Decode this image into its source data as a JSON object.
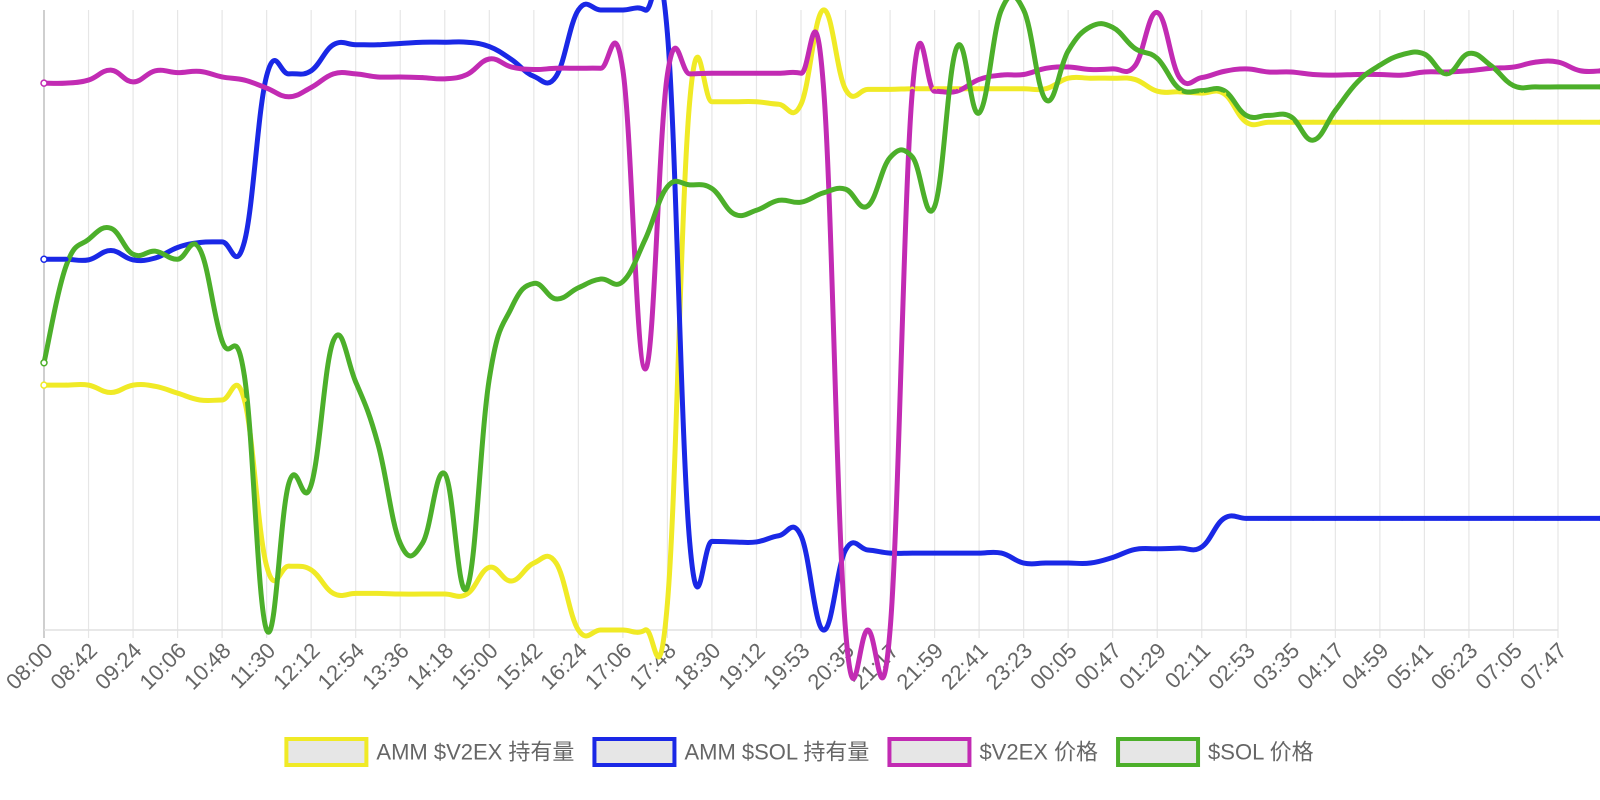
{
  "chart_data": {
    "type": "line",
    "title": "",
    "xlabel": "",
    "ylabel": "",
    "grid": {
      "vertical": true,
      "horizontal": false
    },
    "legend_position": "bottom",
    "y_axis_labels_visible": false,
    "y_normalized": true,
    "categories": [
      "08:00",
      "08:42",
      "09:24",
      "10:06",
      "10:48",
      "11:30",
      "12:12",
      "12:54",
      "13:36",
      "14:18",
      "15:00",
      "15:42",
      "16:24",
      "17:06",
      "17:48",
      "18:30",
      "19:12",
      "19:53",
      "20:35",
      "21:17",
      "21:59",
      "22:41",
      "23:23",
      "00:05",
      "00:47",
      "01:29",
      "02:11",
      "02:53",
      "03:35",
      "04:17",
      "04:59",
      "05:41",
      "06:23",
      "07:05",
      "07:47"
    ],
    "x": [
      0,
      0.5,
      1,
      1.5,
      2,
      2.5,
      3,
      3.5,
      4,
      4.5,
      5,
      5.5,
      6,
      6.5,
      7,
      7.5,
      8,
      8.5,
      9,
      9.5,
      10,
      10.5,
      11,
      11.5,
      12,
      12.5,
      13,
      13.5,
      14,
      14.5,
      15,
      15.5,
      16,
      16.5,
      17,
      17.5,
      18,
      18.5,
      19,
      19.5,
      20,
      20.5,
      21,
      21.5,
      22,
      22.5,
      23,
      23.5,
      24,
      24.5,
      25,
      25.5,
      26,
      26.5,
      27,
      27.5,
      28,
      28.5,
      29,
      29.5,
      30,
      30.5,
      31,
      31.5,
      32,
      32.5,
      33,
      33.5,
      34,
      34.5,
      35
    ],
    "series": [
      {
        "name": "AMM $V2EX 持有量",
        "color": "#f0ea26",
        "values": [
          0.395,
          0.395,
          0.395,
          0.383,
          0.395,
          0.393,
          0.382,
          0.371,
          0.371,
          0.371,
          0.103,
          0.103,
          0.097,
          0.059,
          0.059,
          0.059,
          0.058,
          0.058,
          0.058,
          0.058,
          0.101,
          0.079,
          0.108,
          0.108,
          0.0,
          0.0,
          0.0,
          0.0,
          0.043,
          0.852,
          0.852,
          0.852,
          0.852,
          0.848,
          0.848,
          1.0,
          0.872,
          0.872,
          0.872,
          0.873,
          0.873,
          0.873,
          0.873,
          0.873,
          0.873,
          0.873,
          0.89,
          0.89,
          0.89,
          0.888,
          0.869,
          0.868,
          0.866,
          0.865,
          0.819,
          0.819,
          0.819,
          0.819,
          0.819,
          0.819,
          0.819,
          0.819,
          0.819,
          0.819,
          0.819,
          0.819,
          0.819,
          0.819,
          0.819,
          0.819,
          0.819
        ]
      },
      {
        "name": "AMM $SOL 持有量",
        "color": "#1a28e6",
        "values": [
          0.598,
          0.598,
          0.597,
          0.612,
          0.597,
          0.6,
          0.617,
          0.625,
          0.626,
          0.626,
          0.894,
          0.897,
          0.902,
          0.944,
          0.944,
          0.944,
          0.946,
          0.948,
          0.948,
          0.948,
          0.941,
          0.92,
          0.893,
          0.893,
          1.0,
          1.0,
          1.0,
          1.0,
          0.962,
          0.142,
          0.143,
          0.142,
          0.142,
          0.152,
          0.152,
          0.0,
          0.129,
          0.129,
          0.124,
          0.124,
          0.124,
          0.124,
          0.124,
          0.124,
          0.108,
          0.108,
          0.108,
          0.108,
          0.117,
          0.13,
          0.131,
          0.132,
          0.134,
          0.18,
          0.18,
          0.18,
          0.18,
          0.18,
          0.18,
          0.18,
          0.18,
          0.18,
          0.18,
          0.18,
          0.18,
          0.18,
          0.18,
          0.18,
          0.18,
          0.18,
          0.18
        ]
      },
      {
        "name": "$V2EX 价格",
        "color": "#c22bb3",
        "values": [
          0.882,
          0.882,
          0.887,
          0.903,
          0.884,
          0.902,
          0.899,
          0.901,
          0.892,
          0.887,
          0.874,
          0.86,
          0.875,
          0.897,
          0.897,
          0.892,
          0.892,
          0.891,
          0.889,
          0.896,
          0.921,
          0.908,
          0.904,
          0.906,
          0.906,
          0.906,
          0.903,
          0.421,
          0.896,
          0.897,
          0.898,
          0.898,
          0.898,
          0.898,
          0.898,
          0.881,
          0.0,
          0.0,
          0.0,
          0.869,
          0.869,
          0.869,
          0.888,
          0.895,
          0.896,
          0.906,
          0.908,
          0.904,
          0.905,
          0.91,
          0.996,
          0.891,
          0.891,
          0.901,
          0.905,
          0.9,
          0.9,
          0.896,
          0.895,
          0.896,
          0.896,
          0.895,
          0.9,
          0.9,
          0.902,
          0.906,
          0.908,
          0.916,
          0.916,
          0.902,
          0.902
        ]
      },
      {
        "name": "$SOL 价格",
        "color": "#4caf2a",
        "values": [
          0.431,
          0.588,
          0.63,
          0.648,
          0.606,
          0.611,
          0.598,
          0.614,
          0.466,
          0.41,
          0.0,
          0.237,
          0.234,
          0.467,
          0.4,
          0.3,
          0.14,
          0.14,
          0.252,
          0.068,
          0.405,
          0.52,
          0.559,
          0.534,
          0.552,
          0.566,
          0.562,
          0.63,
          0.715,
          0.718,
          0.712,
          0.671,
          0.677,
          0.693,
          0.69,
          0.705,
          0.711,
          0.684,
          0.762,
          0.763,
          0.683,
          0.94,
          0.834,
          1.0,
          1.0,
          0.855,
          0.934,
          0.973,
          0.972,
          0.938,
          0.922,
          0.873,
          0.87,
          0.87,
          0.83,
          0.83,
          0.828,
          0.79,
          0.838,
          0.884,
          0.911,
          0.928,
          0.929,
          0.897,
          0.93,
          0.91,
          0.878,
          0.876,
          0.876,
          0.876,
          0.876
        ]
      }
    ]
  }
}
